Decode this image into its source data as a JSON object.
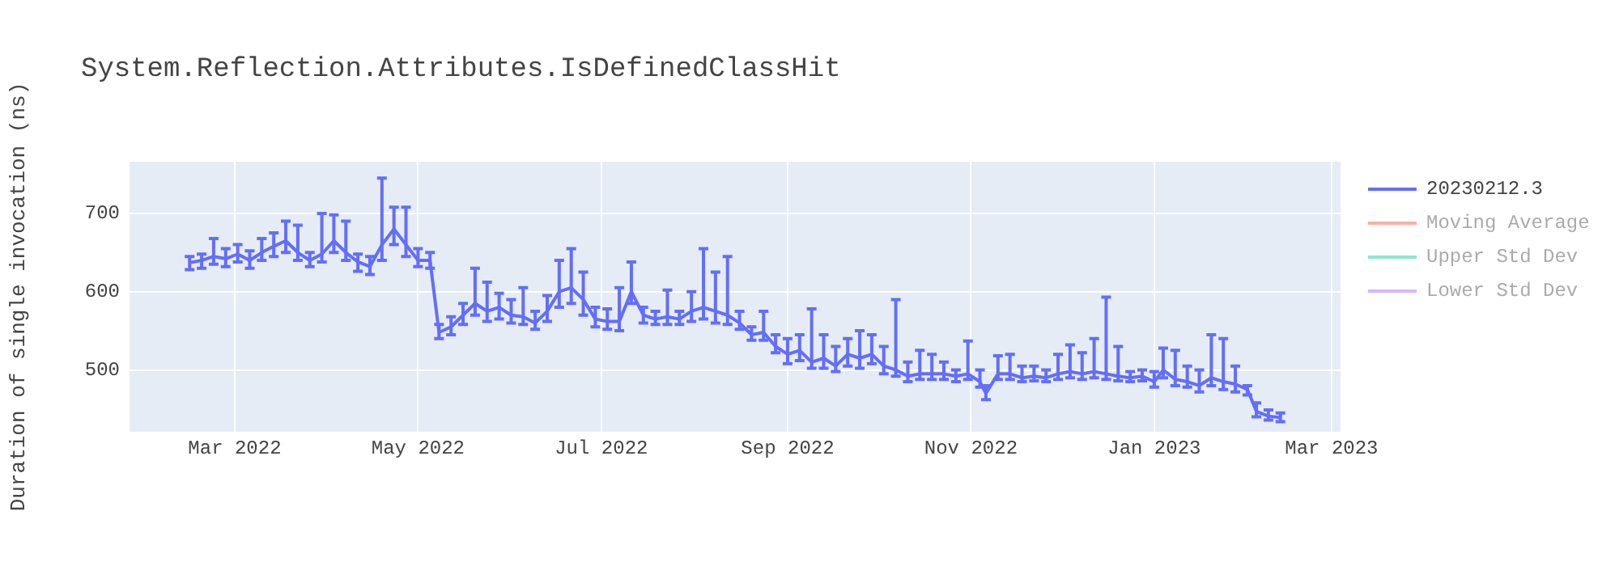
{
  "chart_data": {
    "type": "line",
    "title": "System.Reflection.Attributes.IsDefinedClassHit",
    "ylabel": "Duration of single invocation (ns)",
    "x": [
      "2022-02-14",
      "2022-02-18",
      "2022-02-22",
      "2022-02-26",
      "2022-03-02",
      "2022-03-06",
      "2022-03-10",
      "2022-03-14",
      "2022-03-18",
      "2022-03-22",
      "2022-03-26",
      "2022-03-30",
      "2022-04-03",
      "2022-04-07",
      "2022-04-11",
      "2022-04-15",
      "2022-04-19",
      "2022-04-23",
      "2022-04-27",
      "2022-05-01",
      "2022-05-05",
      "2022-05-08",
      "2022-05-12",
      "2022-05-16",
      "2022-05-20",
      "2022-05-24",
      "2022-05-28",
      "2022-06-01",
      "2022-06-05",
      "2022-06-09",
      "2022-06-13",
      "2022-06-17",
      "2022-06-21",
      "2022-06-25",
      "2022-06-29",
      "2022-07-03",
      "2022-07-07",
      "2022-07-11",
      "2022-07-15",
      "2022-07-19",
      "2022-07-23",
      "2022-07-27",
      "2022-07-31",
      "2022-08-04",
      "2022-08-08",
      "2022-08-12",
      "2022-08-16",
      "2022-08-20",
      "2022-08-24",
      "2022-08-28",
      "2022-09-01",
      "2022-09-05",
      "2022-09-09",
      "2022-09-13",
      "2022-09-17",
      "2022-09-21",
      "2022-09-25",
      "2022-09-29",
      "2022-10-03",
      "2022-10-07",
      "2022-10-11",
      "2022-10-15",
      "2022-10-19",
      "2022-10-23",
      "2022-10-27",
      "2022-10-31",
      "2022-11-04",
      "2022-11-06",
      "2022-11-10",
      "2022-11-14",
      "2022-11-18",
      "2022-11-22",
      "2022-11-26",
      "2022-11-30",
      "2022-12-04",
      "2022-12-08",
      "2022-12-12",
      "2022-12-16",
      "2022-12-20",
      "2022-12-24",
      "2022-12-28",
      "2023-01-01",
      "2023-01-04",
      "2023-01-08",
      "2023-01-12",
      "2023-01-16",
      "2023-01-20",
      "2023-01-24",
      "2023-01-28",
      "2023-02-01",
      "2023-02-04",
      "2023-02-08",
      "2023-02-12"
    ],
    "series": [
      {
        "name": "20230212.3",
        "color": "#636efa",
        "values": [
          637,
          640,
          645,
          642,
          648,
          640,
          650,
          658,
          665,
          650,
          640,
          648,
          665,
          650,
          638,
          632,
          660,
          680,
          660,
          640,
          640,
          548,
          555,
          570,
          585,
          575,
          580,
          570,
          568,
          560,
          575,
          600,
          605,
          590,
          565,
          562,
          562,
          600,
          570,
          565,
          568,
          565,
          575,
          580,
          575,
          570,
          560,
          545,
          548,
          530,
          520,
          525,
          510,
          515,
          505,
          520,
          515,
          520,
          505,
          500,
          492,
          495,
          495,
          495,
          492,
          495,
          485,
          470,
          495,
          495,
          490,
          492,
          490,
          495,
          498,
          495,
          498,
          495,
          492,
          490,
          492,
          485,
          500,
          488,
          485,
          480,
          490,
          485,
          482,
          475,
          447,
          441,
          439
        ],
        "errors": [
          [
            628,
            645
          ],
          [
            630,
            648
          ],
          [
            635,
            668
          ],
          [
            632,
            655
          ],
          [
            638,
            660
          ],
          [
            630,
            652
          ],
          [
            640,
            668
          ],
          [
            645,
            675
          ],
          [
            650,
            690
          ],
          [
            640,
            685
          ],
          [
            632,
            650
          ],
          [
            638,
            700
          ],
          [
            650,
            698
          ],
          [
            640,
            690
          ],
          [
            626,
            648
          ],
          [
            622,
            645
          ],
          [
            640,
            745
          ],
          [
            660,
            708
          ],
          [
            645,
            708
          ],
          [
            632,
            655
          ],
          [
            630,
            650
          ],
          [
            540,
            558
          ],
          [
            545,
            568
          ],
          [
            558,
            585
          ],
          [
            570,
            630
          ],
          [
            562,
            612
          ],
          [
            565,
            598
          ],
          [
            560,
            590
          ],
          [
            558,
            605
          ],
          [
            552,
            575
          ],
          [
            562,
            595
          ],
          [
            580,
            640
          ],
          [
            585,
            655
          ],
          [
            570,
            625
          ],
          [
            555,
            580
          ],
          [
            552,
            578
          ],
          [
            550,
            605
          ],
          [
            585,
            638
          ],
          [
            560,
            580
          ],
          [
            558,
            575
          ],
          [
            558,
            602
          ],
          [
            558,
            575
          ],
          [
            562,
            600
          ],
          [
            565,
            655
          ],
          [
            560,
            625
          ],
          [
            558,
            645
          ],
          [
            552,
            575
          ],
          [
            538,
            555
          ],
          [
            538,
            575
          ],
          [
            522,
            545
          ],
          [
            508,
            540
          ],
          [
            512,
            545
          ],
          [
            502,
            578
          ],
          [
            502,
            545
          ],
          [
            498,
            530
          ],
          [
            505,
            540
          ],
          [
            502,
            550
          ],
          [
            508,
            545
          ],
          [
            495,
            530
          ],
          [
            492,
            590
          ],
          [
            485,
            510
          ],
          [
            488,
            525
          ],
          [
            488,
            520
          ],
          [
            488,
            510
          ],
          [
            485,
            500
          ],
          [
            488,
            537
          ],
          [
            478,
            500
          ],
          [
            462,
            480
          ],
          [
            488,
            518
          ],
          [
            488,
            520
          ],
          [
            485,
            505
          ],
          [
            486,
            505
          ],
          [
            485,
            500
          ],
          [
            488,
            520
          ],
          [
            490,
            532
          ],
          [
            488,
            522
          ],
          [
            490,
            540
          ],
          [
            488,
            593
          ],
          [
            486,
            530
          ],
          [
            485,
            498
          ],
          [
            486,
            500
          ],
          [
            478,
            498
          ],
          [
            490,
            528
          ],
          [
            480,
            525
          ],
          [
            478,
            505
          ],
          [
            472,
            500
          ],
          [
            480,
            545
          ],
          [
            475,
            540
          ],
          [
            472,
            505
          ],
          [
            468,
            480
          ],
          [
            440,
            458
          ],
          [
            436,
            449
          ],
          [
            434,
            445
          ]
        ]
      },
      {
        "name": "Moving Average",
        "color": "#ef553b",
        "values": [
          null,
          null,
          null,
          null,
          null,
          null,
          null,
          null,
          null,
          null,
          null,
          null,
          null,
          null,
          null,
          null,
          null,
          null,
          null,
          null,
          null,
          null,
          null,
          null,
          null,
          null,
          null,
          null,
          null,
          null,
          null,
          null,
          null,
          null,
          null,
          null,
          null,
          null,
          null,
          null,
          null,
          null,
          null,
          null,
          null,
          null,
          null,
          null,
          null,
          null,
          null,
          null,
          null,
          null,
          null,
          null,
          null,
          null,
          null,
          null,
          null,
          null,
          null,
          null,
          null,
          null,
          null,
          null,
          null,
          null,
          null,
          null,
          null,
          null,
          null,
          null,
          null,
          null,
          null,
          null,
          null,
          null,
          null,
          null,
          null,
          null,
          null,
          null,
          null,
          null,
          null,
          null,
          null
        ]
      },
      {
        "name": "Upper Std Dev",
        "color": "#00cc96",
        "values": [
          null,
          null,
          null,
          null,
          null,
          null,
          null,
          null,
          null,
          null,
          null,
          null,
          null,
          null,
          null,
          null,
          null,
          null,
          null,
          null,
          null,
          null,
          null,
          null,
          null,
          null,
          null,
          null,
          null,
          null,
          null,
          null,
          null,
          null,
          null,
          null,
          null,
          null,
          null,
          null,
          null,
          null,
          null,
          null,
          null,
          null,
          null,
          null,
          null,
          null,
          null,
          null,
          null,
          null,
          null,
          null,
          null,
          null,
          null,
          null,
          null,
          null,
          null,
          null,
          null,
          null,
          null,
          null,
          null,
          null,
          null,
          null,
          null,
          null,
          null,
          null,
          null,
          null,
          null,
          null,
          null,
          null,
          null,
          null,
          null,
          null,
          null,
          null,
          null,
          null,
          null,
          null,
          null
        ]
      },
      {
        "name": "Lower Std Dev",
        "color": "#ab63fa",
        "values": [
          null,
          null,
          null,
          null,
          null,
          null,
          null,
          null,
          null,
          null,
          null,
          null,
          null,
          null,
          null,
          null,
          null,
          null,
          null,
          null,
          null,
          null,
          null,
          null,
          null,
          null,
          null,
          null,
          null,
          null,
          null,
          null,
          null,
          null,
          null,
          null,
          null,
          null,
          null,
          null,
          null,
          null,
          null,
          null,
          null,
          null,
          null,
          null,
          null,
          null,
          null,
          null,
          null,
          null,
          null,
          null,
          null,
          null,
          null,
          null,
          null,
          null,
          null,
          null,
          null,
          null,
          null,
          null,
          null,
          null,
          null,
          null,
          null,
          null,
          null,
          null,
          null,
          null,
          null,
          null,
          null,
          null,
          null,
          null,
          null,
          null,
          null,
          null,
          null,
          null,
          null,
          null,
          null
        ]
      }
    ],
    "xlim": [
      "2022-01-25",
      "2023-03-04"
    ],
    "xticks": [
      {
        "value": "2022-03-01",
        "label": "Mar 2022"
      },
      {
        "value": "2022-05-01",
        "label": "May 2022"
      },
      {
        "value": "2022-07-01",
        "label": "Jul 2022"
      },
      {
        "value": "2022-09-01",
        "label": "Sep 2022"
      },
      {
        "value": "2022-11-01",
        "label": "Nov 2022"
      },
      {
        "value": "2023-01-01",
        "label": "Jan 2023"
      },
      {
        "value": "2023-03-01",
        "label": "Mar 2023"
      }
    ],
    "ylim": [
      421,
      766
    ],
    "yticks": [
      500,
      600,
      700
    ],
    "grid": true,
    "legend": "right",
    "marker": "none",
    "line_style": "solid"
  }
}
